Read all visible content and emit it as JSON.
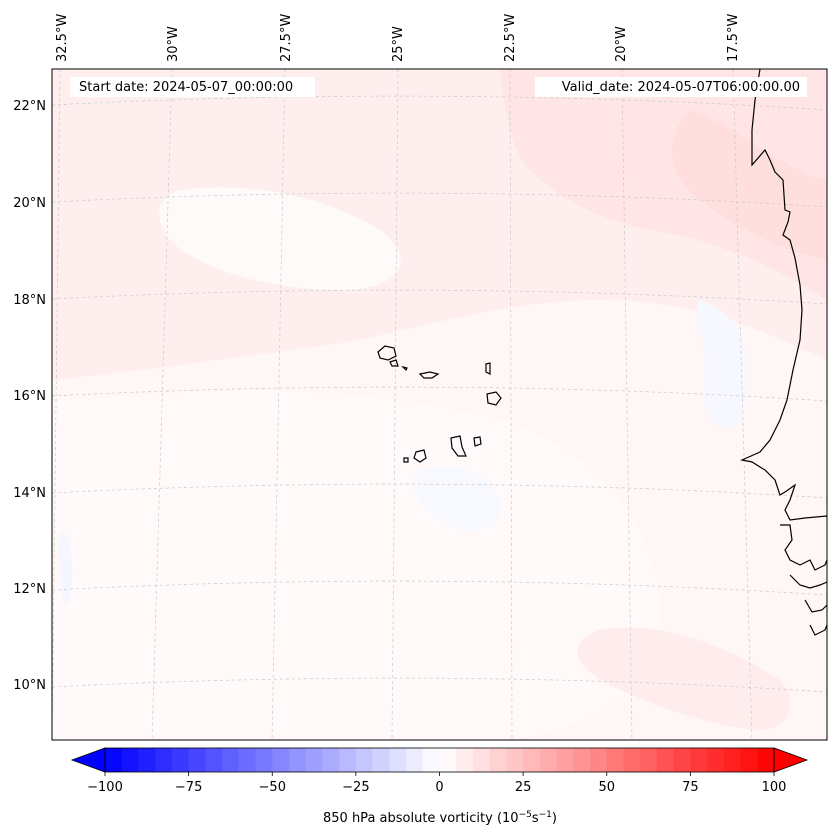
{
  "map": {
    "start_date": "Start date: 2024-05-07_00:00:00",
    "valid_date": "Valid_date: 2024-05-07T06:00:00.00",
    "lon_labels": [
      "32.5°W",
      "30°W",
      "27.5°W",
      "25°W",
      "22.5°W",
      "20°W",
      "17.5°W"
    ],
    "lat_labels": [
      "22°N",
      "20°N",
      "18°N",
      "16°N",
      "14°N",
      "12°N",
      "10°N"
    ],
    "coastline_color": "#000000",
    "gridline_color": "#bdbdbd"
  },
  "colorbar": {
    "ticks": [
      "−100",
      "−75",
      "−50",
      "−25",
      "0",
      "25",
      "50",
      "75",
      "100"
    ],
    "tick_values": [
      -100,
      -75,
      -50,
      -25,
      0,
      25,
      50,
      75,
      100
    ],
    "min": -100,
    "max": 100,
    "levels": 41,
    "colormap": "bwr",
    "extend": "both"
  }
}
